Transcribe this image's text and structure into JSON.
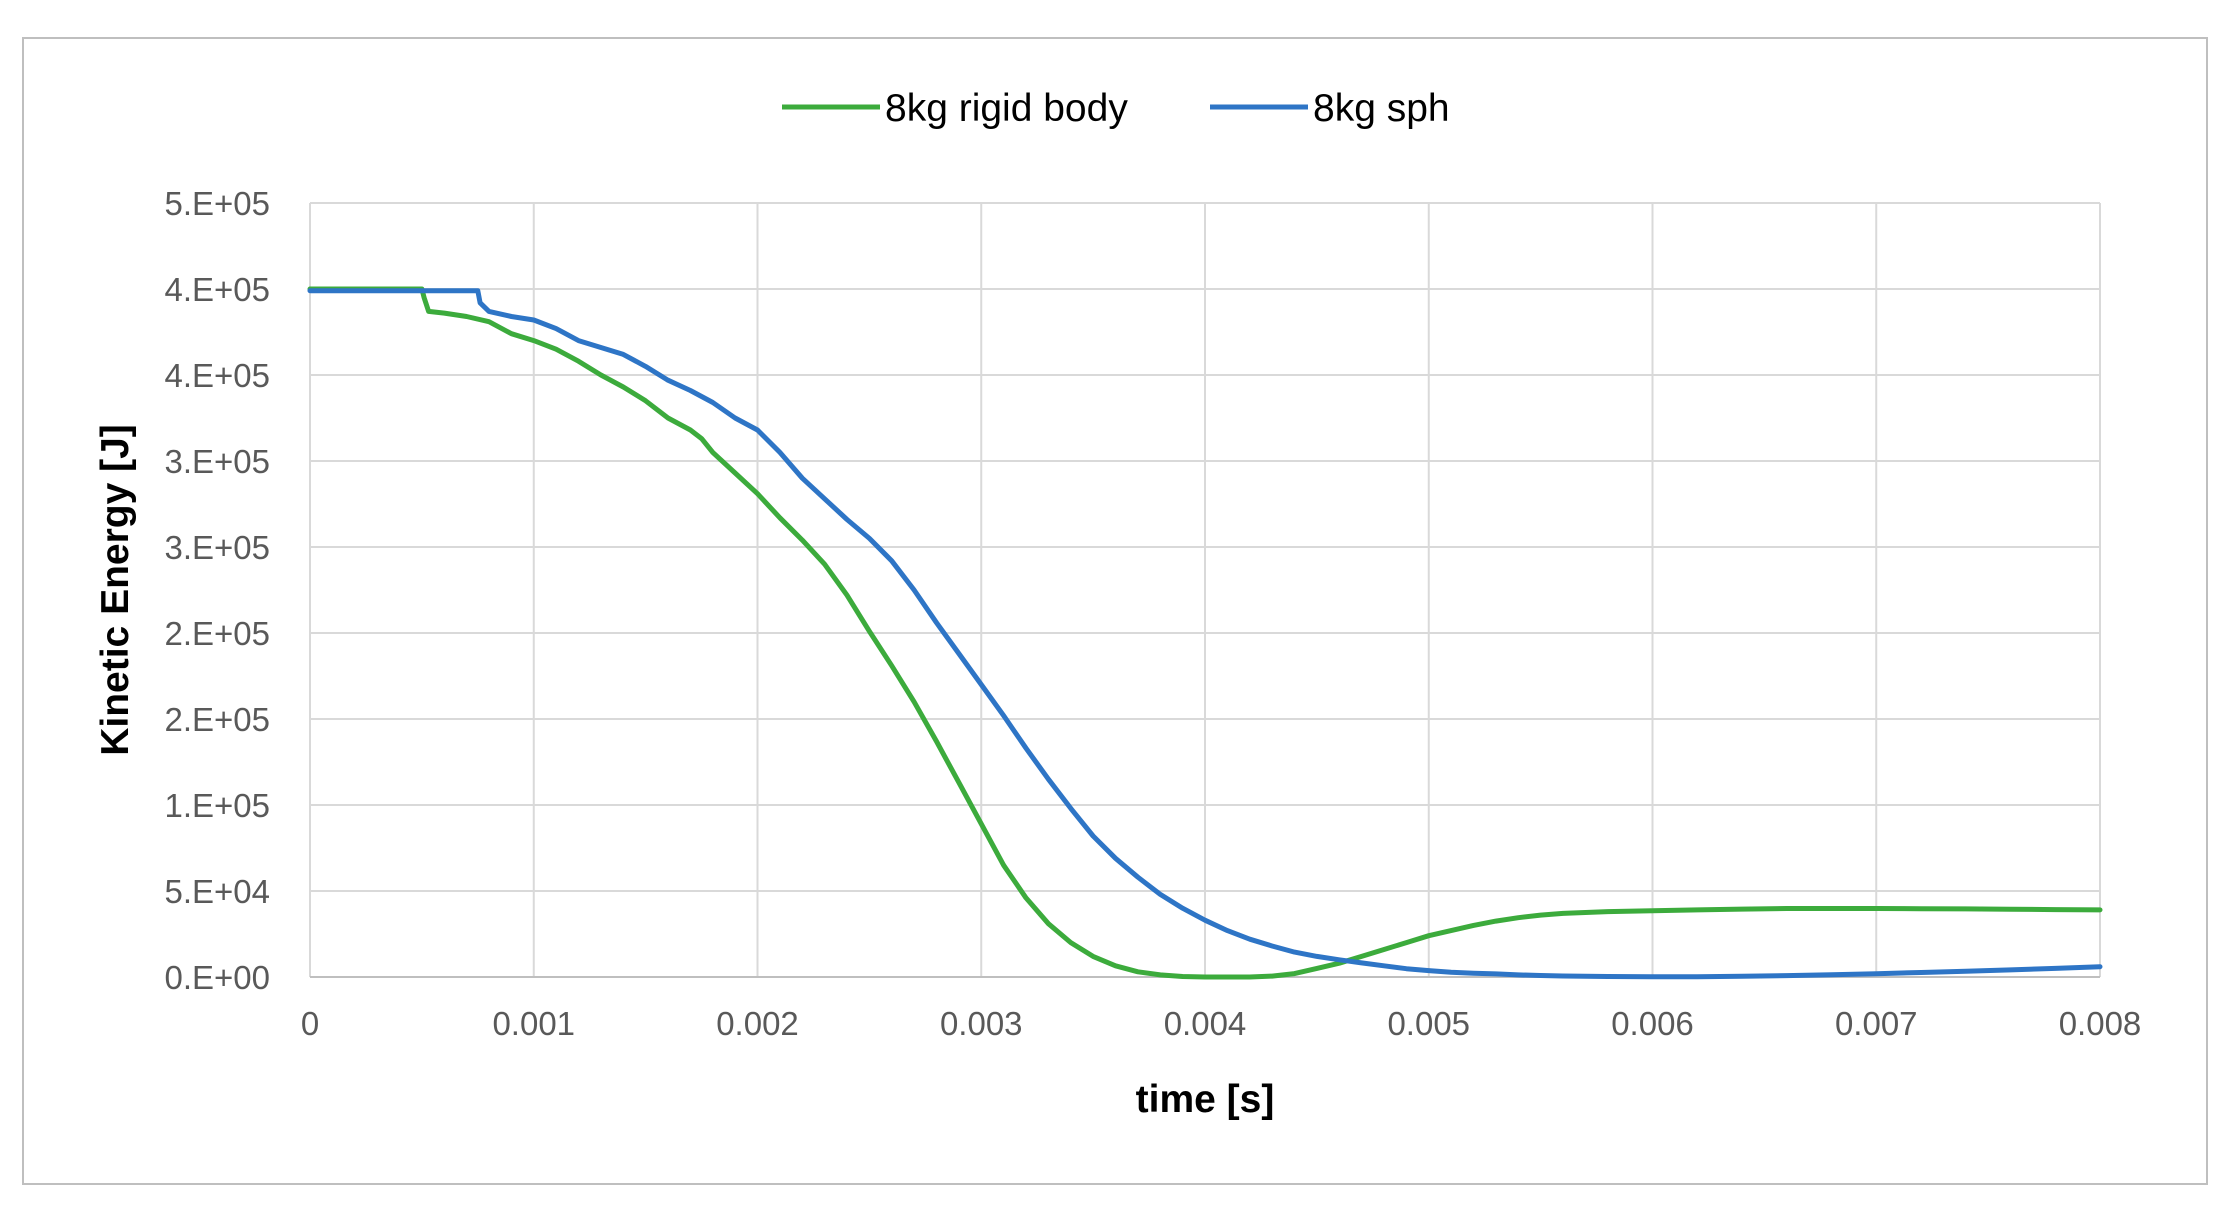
{
  "chart_data": {
    "type": "line",
    "title": "",
    "xlabel": "time [s]",
    "ylabel": "Kinetic Energy [J]",
    "xlim": [
      0,
      0.008
    ],
    "ylim": [
      0,
      450000
    ],
    "x_ticks": [
      0,
      0.001,
      0.002,
      0.003,
      0.004,
      0.005,
      0.006,
      0.007,
      0.008
    ],
    "x_tick_labels": [
      "0",
      "0.001",
      "0.002",
      "0.003",
      "0.004",
      "0.005",
      "0.006",
      "0.007",
      "0.008"
    ],
    "y_ticks": [
      0,
      50000,
      100000,
      150000,
      200000,
      250000,
      300000,
      350000,
      400000,
      450000
    ],
    "y_tick_labels": [
      "0.E+00",
      "5.E+04",
      "1.E+05",
      "2.E+05",
      "2.E+05",
      "3.E+05",
      "3.E+05",
      "4.E+05",
      "4.E+05",
      "5.E+05"
    ],
    "grid": true,
    "legend_position": "top-center",
    "series": [
      {
        "name": "8kg rigid body",
        "color": "#3cab3c",
        "x": [
          0,
          0.0005,
          0.00051,
          0.00053,
          0.0006,
          0.0007,
          0.0008,
          0.0009,
          0.001,
          0.0011,
          0.0012,
          0.0013,
          0.0014,
          0.0015,
          0.0016,
          0.0017,
          0.00175,
          0.0018,
          0.0019,
          0.002,
          0.0021,
          0.0022,
          0.0023,
          0.0024,
          0.0025,
          0.0026,
          0.0027,
          0.0028,
          0.0029,
          0.003,
          0.0031,
          0.0032,
          0.0033,
          0.0034,
          0.0035,
          0.0036,
          0.0037,
          0.0038,
          0.0039,
          0.004,
          0.0041,
          0.0042,
          0.0043,
          0.0044,
          0.0045,
          0.0046,
          0.0047,
          0.0048,
          0.0049,
          0.005,
          0.0051,
          0.0052,
          0.0053,
          0.0054,
          0.0055,
          0.0056,
          0.0057,
          0.0058,
          0.006,
          0.0062,
          0.0064,
          0.0066,
          0.0068,
          0.007,
          0.0072,
          0.0074,
          0.0076,
          0.0078,
          0.008
        ],
        "values": [
          400000,
          400000,
          395000,
          387000,
          386000,
          384000,
          381000,
          374000,
          370000,
          365000,
          358000,
          350000,
          343000,
          335000,
          325000,
          318000,
          313000,
          305000,
          293000,
          281000,
          267000,
          254000,
          240000,
          222000,
          201000,
          181000,
          160000,
          137000,
          113000,
          89000,
          65000,
          46000,
          31000,
          20000,
          12000,
          6500,
          3000,
          1200,
          300,
          0,
          0,
          0,
          500,
          2000,
          5000,
          8000,
          12000,
          16000,
          20000,
          24000,
          27000,
          30000,
          32500,
          34500,
          36000,
          37000,
          37500,
          38000,
          38500,
          39000,
          39500,
          39800,
          39800,
          39800,
          39700,
          39600,
          39400,
          39200,
          39000
        ]
      },
      {
        "name": "8kg sph",
        "color": "#2e75c6",
        "x": [
          0,
          0.0006,
          0.00075,
          0.00076,
          0.0008,
          0.0009,
          0.001,
          0.0011,
          0.0012,
          0.0013,
          0.0014,
          0.0015,
          0.0016,
          0.0017,
          0.0018,
          0.0019,
          0.002,
          0.0021,
          0.0022,
          0.0023,
          0.0024,
          0.0025,
          0.0026,
          0.0027,
          0.0028,
          0.0029,
          0.003,
          0.0031,
          0.0032,
          0.0033,
          0.0034,
          0.0035,
          0.0036,
          0.0037,
          0.0038,
          0.0039,
          0.004,
          0.0041,
          0.0042,
          0.0043,
          0.0044,
          0.0045,
          0.0046,
          0.0047,
          0.0048,
          0.0049,
          0.005,
          0.0051,
          0.0052,
          0.0053,
          0.0054,
          0.0055,
          0.0056,
          0.0057,
          0.0058,
          0.006,
          0.0062,
          0.0064,
          0.0066,
          0.0068,
          0.007,
          0.0072,
          0.0074,
          0.0076,
          0.0078,
          0.008
        ],
        "values": [
          399000,
          399000,
          399000,
          392000,
          387000,
          384000,
          382000,
          377000,
          370000,
          366000,
          362000,
          355000,
          347000,
          341000,
          334000,
          325000,
          318000,
          305000,
          290000,
          278000,
          266000,
          255000,
          242000,
          225000,
          206000,
          188000,
          170000,
          152000,
          133000,
          115000,
          98000,
          82000,
          69000,
          58000,
          48000,
          40000,
          33000,
          27000,
          22000,
          18000,
          14500,
          12000,
          10000,
          8200,
          6500,
          4800,
          3700,
          2800,
          2200,
          1800,
          1200,
          900,
          600,
          400,
          300,
          200,
          200,
          400,
          800,
          1300,
          1900,
          2600,
          3300,
          4100,
          5000,
          6000
        ]
      }
    ]
  }
}
